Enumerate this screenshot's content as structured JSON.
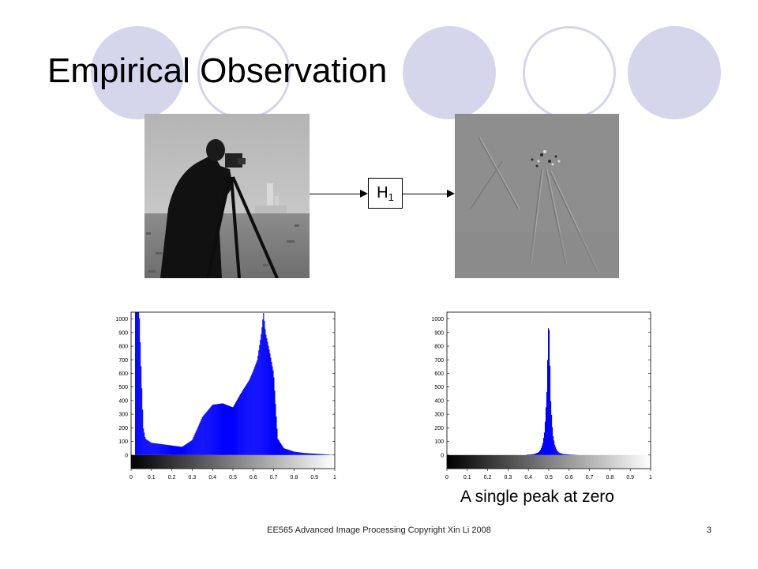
{
  "slide": {
    "title": "Empirical Observation",
    "filter_label": "H",
    "filter_subscript": "1",
    "caption": "A single peak at zero",
    "footer": "EE565 Advanced Image Processing Copyright Xin Li 2008",
    "page_number": "3"
  },
  "theme": {
    "circle_color": "#d5d5ec",
    "hist_color": "#0000ff"
  },
  "chart_data": [
    {
      "type": "bar",
      "title": "",
      "xlabel": "",
      "ylabel": "",
      "xlim": [
        0,
        1
      ],
      "ylim": [
        -100,
        1050
      ],
      "x_ticks": [
        "0",
        "0.1",
        "0.2",
        "0.3",
        "0.4",
        "0.5",
        "0.6",
        "0.7",
        "0.8",
        "0.9",
        "1"
      ],
      "y_ticks": [
        "0",
        "100",
        "200",
        "300",
        "400",
        "500",
        "600",
        "700",
        "800",
        "900",
        "1000"
      ],
      "colorbar": "grayscale",
      "x": [
        0.03,
        0.04,
        0.05,
        0.06,
        0.07,
        0.1,
        0.15,
        0.2,
        0.25,
        0.3,
        0.35,
        0.4,
        0.45,
        0.5,
        0.53,
        0.55,
        0.58,
        0.6,
        0.62,
        0.64,
        0.65,
        0.66,
        0.68,
        0.7,
        0.71,
        0.72,
        0.75,
        0.8,
        0.85,
        0.9,
        0.95,
        1.0
      ],
      "values": [
        1050,
        1050,
        600,
        200,
        120,
        90,
        80,
        70,
        60,
        110,
        280,
        370,
        380,
        350,
        430,
        480,
        550,
        620,
        700,
        900,
        1050,
        900,
        760,
        600,
        350,
        120,
        50,
        25,
        15,
        10,
        5,
        0
      ]
    },
    {
      "type": "bar",
      "title": "",
      "xlabel": "",
      "ylabel": "",
      "xlim": [
        0,
        1
      ],
      "ylim": [
        -100,
        1050
      ],
      "x_ticks": [
        "0",
        "0.1",
        "0.2",
        "0.3",
        "0.4",
        "0.5",
        "0.6",
        "0.7",
        "0.8",
        "0.9",
        "1"
      ],
      "y_ticks": [
        "0",
        "100",
        "200",
        "300",
        "400",
        "500",
        "600",
        "700",
        "800",
        "900",
        "1000"
      ],
      "colorbar": "grayscale",
      "x": [
        0.4,
        0.43,
        0.45,
        0.46,
        0.47,
        0.48,
        0.49,
        0.5,
        0.51,
        0.52,
        0.53,
        0.54,
        0.55,
        0.57,
        0.6,
        0.65
      ],
      "values": [
        3,
        8,
        20,
        40,
        80,
        180,
        450,
        1050,
        380,
        150,
        70,
        35,
        18,
        8,
        4,
        0
      ]
    }
  ]
}
